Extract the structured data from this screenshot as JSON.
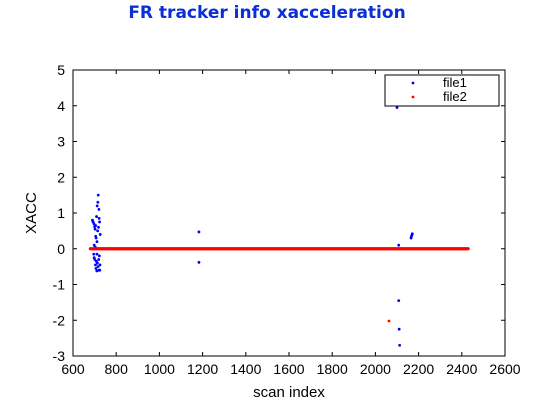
{
  "chart_data": {
    "type": "scatter",
    "title": "FR tracker info xacceleration",
    "xlabel": "scan index",
    "ylabel": "XACC",
    "xlim": [
      600,
      2600
    ],
    "ylim": [
      -3,
      5
    ],
    "xticks": [
      600,
      800,
      1000,
      1200,
      1400,
      1600,
      1800,
      2000,
      2200,
      2400,
      2600
    ],
    "yticks": [
      -3,
      -2,
      -1,
      0,
      1,
      2,
      3,
      4,
      5
    ],
    "legend": "top-right",
    "grid": false,
    "series": [
      {
        "name": "file1",
        "color": "#0000ff",
        "baseline": {
          "x_start": 680,
          "x_end": 2430,
          "y": 0
        },
        "points": [
          [
            690,
            0.8
          ],
          [
            693,
            0.75
          ],
          [
            696,
            -0.15
          ],
          [
            697,
            0.7
          ],
          [
            698,
            0.1
          ],
          [
            700,
            0.62
          ],
          [
            701,
            -0.3
          ],
          [
            702,
            0.55
          ],
          [
            703,
            0.05
          ],
          [
            704,
            -0.45
          ],
          [
            705,
            0.65
          ],
          [
            706,
            -0.55
          ],
          [
            707,
            0.3
          ],
          [
            708,
            -0.35
          ],
          [
            709,
            0.9
          ],
          [
            710,
            -0.62
          ],
          [
            711,
            0.2
          ],
          [
            712,
            1.2
          ],
          [
            713,
            -0.4
          ],
          [
            714,
            0.5
          ],
          [
            715,
            1.3
          ],
          [
            716,
            -0.5
          ],
          [
            717,
            1.5
          ],
          [
            718,
            0.6
          ],
          [
            719,
            -0.3
          ],
          [
            720,
            1.1
          ],
          [
            721,
            0.85
          ],
          [
            722,
            -0.2
          ],
          [
            723,
            0.75
          ],
          [
            724,
            -0.6
          ],
          [
            725,
            -0.45
          ],
          [
            726,
            0.4
          ],
          [
            705,
            0.35
          ],
          [
            711,
            -0.15
          ],
          [
            719,
            -0.6
          ],
          [
            698,
            -0.25
          ],
          [
            1183,
            0.47
          ],
          [
            1183,
            -0.38
          ],
          [
            1210,
            0.0
          ],
          [
            1225,
            0.0
          ],
          [
            2100,
            3.95
          ],
          [
            2108,
            -1.45
          ],
          [
            2110,
            -2.25
          ],
          [
            2112,
            -2.7
          ],
          [
            2108,
            0.1
          ],
          [
            2165,
            0.3
          ],
          [
            2167,
            0.35
          ],
          [
            2169,
            0.38
          ],
          [
            2171,
            0.42
          ]
        ]
      },
      {
        "name": "file2",
        "color": "#ff0000",
        "baseline": {
          "x_start": 680,
          "x_end": 2430,
          "y": 0
        },
        "points": [
          [
            2063,
            -2.02
          ]
        ]
      }
    ]
  }
}
